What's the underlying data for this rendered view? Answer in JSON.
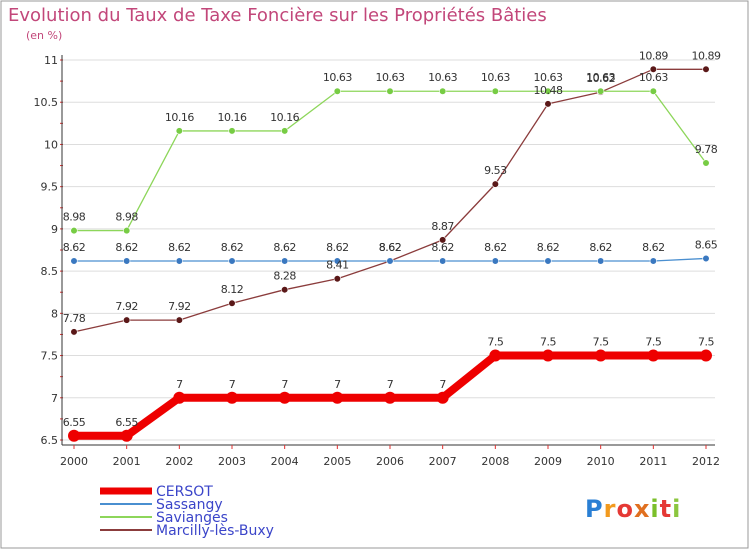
{
  "header": {
    "title": "Evolution du Taux de Taxe Foncière sur les Propriétés Bâties",
    "unit": "(en %)"
  },
  "branding": {
    "logo_text": "Proxiti"
  },
  "colors": {
    "title": "#c2477a",
    "grid": "#dddddd",
    "axis": "#333333",
    "tick_red": "#e03030",
    "legend_text": "#3b45c9"
  },
  "chart_data": {
    "type": "line",
    "title": "Evolution du Taux de Taxe Foncière sur les Propriétés Bâties",
    "ylabel": "(en %)",
    "xlabel": "",
    "x": [
      "2000",
      "2001",
      "2002",
      "2003",
      "2004",
      "2005",
      "2006",
      "2007",
      "2008",
      "2009",
      "2010",
      "2011",
      "2012"
    ],
    "ylim": [
      6.5,
      11
    ],
    "yticks": [
      "6.5",
      "7",
      "7.5",
      "8",
      "8.5",
      "9",
      "9.5",
      "10",
      "10.5",
      "11"
    ],
    "grid": true,
    "legend_position": "bottom-left",
    "series": [
      {
        "name": "CERSOT",
        "color": "#ee0000",
        "marker_color": "#ee0000",
        "width": 8,
        "values": [
          6.55,
          6.55,
          7,
          7,
          7,
          7,
          7,
          7,
          7.5,
          7.5,
          7.5,
          7.5,
          7.5
        ],
        "labels": [
          "6.55",
          "6.55",
          "7",
          "7",
          "7",
          "7",
          "7",
          "7",
          "7.5",
          "7.5",
          "7.5",
          "7.5",
          "7.5"
        ]
      },
      {
        "name": "Sassangy",
        "color": "#4a8fd0",
        "marker_color": "#3a78c0",
        "width": 1.3,
        "values": [
          8.62,
          8.62,
          8.62,
          8.62,
          8.62,
          8.62,
          8.62,
          8.62,
          8.62,
          8.62,
          8.62,
          8.62,
          8.65
        ],
        "labels": [
          "8.62",
          "8.62",
          "8.62",
          "8.62",
          "8.62",
          "8.62",
          "8.62",
          "8.62",
          "8.62",
          "8.62",
          "8.62",
          "8.62",
          "8.65"
        ]
      },
      {
        "name": "Savianges",
        "color": "#8dd65a",
        "marker_color": "#77cc44",
        "width": 1.3,
        "values": [
          8.98,
          8.98,
          10.16,
          10.16,
          10.16,
          10.63,
          10.63,
          10.63,
          10.63,
          10.63,
          10.63,
          10.63,
          9.78
        ],
        "labels": [
          "8.98",
          "8.98",
          "10.16",
          "10.16",
          "10.16",
          "10.63",
          "10.63",
          "10.63",
          "10.63",
          "10.63",
          "10.63",
          "10.63",
          "9.78"
        ]
      },
      {
        "name": "Marcilly-lès-Buxy",
        "color": "#8b3c3c",
        "marker_color": "#5a1818",
        "width": 1.3,
        "values": [
          7.78,
          7.92,
          7.92,
          8.12,
          8.28,
          8.41,
          8.62,
          8.87,
          9.53,
          10.48,
          10.62,
          10.89,
          10.89
        ],
        "labels": [
          "7.78",
          "7.92",
          "7.92",
          "8.12",
          "8.28",
          "8.41",
          "8.62",
          "8.87",
          "9.53",
          "10.48",
          "10.62",
          "10.89",
          "10.89"
        ]
      }
    ]
  }
}
